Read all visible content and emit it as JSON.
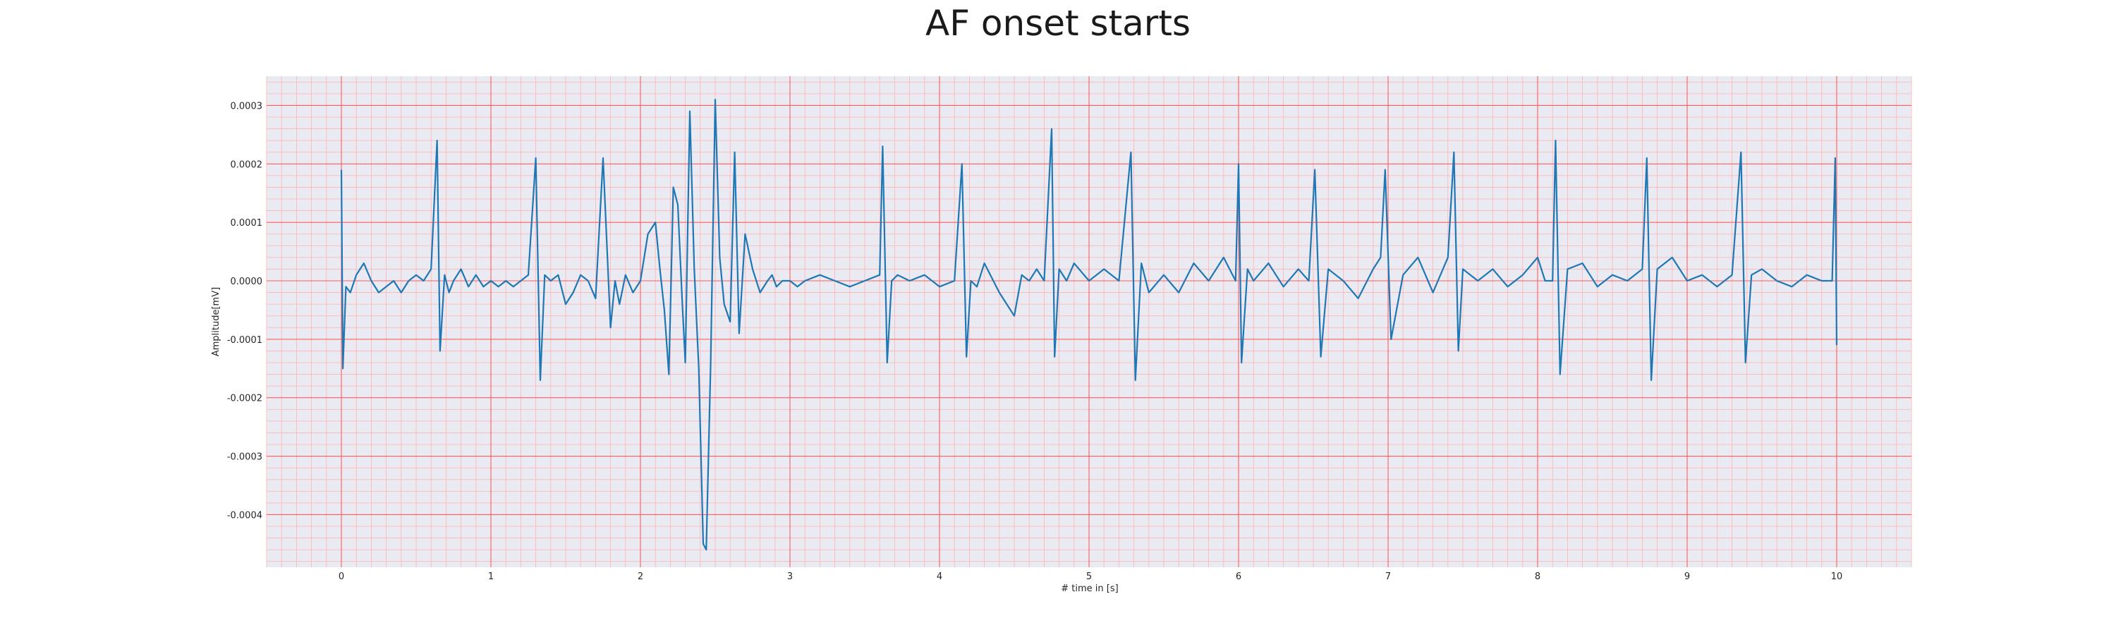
{
  "chart_data": {
    "type": "line",
    "title": "AF onset starts",
    "xlabel": "# time in [s]",
    "ylabel": "Amplitude[mV]",
    "xlim": [
      -0.5,
      10.5
    ],
    "ylim": [
      -0.00049,
      0.00035
    ],
    "x_ticks": [
      0,
      1,
      2,
      3,
      4,
      5,
      6,
      7,
      8,
      9,
      10
    ],
    "x_tick_labels": [
      "0",
      "1",
      "2",
      "3",
      "4",
      "5",
      "6",
      "7",
      "8",
      "9",
      "10"
    ],
    "y_ticks": [
      0.0003,
      0.0002,
      0.0001,
      0.0,
      -0.0001,
      -0.0002,
      -0.0003,
      -0.0004
    ],
    "y_tick_labels": [
      "0.0003",
      "0.0002",
      "0.0001",
      "0.0000",
      "-0.0001",
      "-0.0002",
      "-0.0003",
      "-0.0004"
    ],
    "grid": "major and minor",
    "colors": {
      "line": "#1f77b4",
      "background": "#eaeaf2",
      "major_grid": "#ff5c5c",
      "minor_grid": "#ffb3b3"
    },
    "series": [
      {
        "x": [
          0,
          0.01,
          0.03,
          0.06,
          0.1,
          0.15,
          0.2,
          0.25,
          0.3,
          0.35,
          0.4,
          0.45,
          0.5,
          0.55,
          0.6,
          0.64,
          0.66,
          0.69,
          0.72,
          0.75,
          0.8,
          0.85,
          0.9,
          0.95,
          1.0,
          1.05,
          1.1,
          1.15,
          1.2,
          1.25,
          1.3,
          1.33,
          1.36,
          1.4,
          1.45,
          1.5,
          1.55,
          1.6,
          1.65,
          1.7,
          1.75,
          1.8,
          1.83,
          1.86,
          1.9,
          1.95,
          2.0,
          2.05,
          2.1,
          2.13,
          2.16,
          2.19,
          2.22,
          2.25,
          2.28,
          2.3,
          2.33,
          2.36,
          2.39,
          2.42,
          2.44,
          2.47,
          2.5,
          2.53,
          2.56,
          2.6,
          2.63,
          2.66,
          2.7,
          2.75,
          2.8,
          2.85,
          2.88,
          2.91,
          2.95,
          3.0,
          3.05,
          3.1,
          3.2,
          3.3,
          3.4,
          3.5,
          3.6,
          3.62,
          3.65,
          3.68,
          3.72,
          3.8,
          3.9,
          4.0,
          4.1,
          4.15,
          4.18,
          4.21,
          4.25,
          4.3,
          4.4,
          4.5,
          4.55,
          4.6,
          4.65,
          4.7,
          4.75,
          4.77,
          4.8,
          4.85,
          4.9,
          5.0,
          5.1,
          5.2,
          5.28,
          5.31,
          5.35,
          5.4,
          5.5,
          5.6,
          5.7,
          5.8,
          5.9,
          5.98,
          6.0,
          6.02,
          6.06,
          6.1,
          6.2,
          6.3,
          6.4,
          6.47,
          6.51,
          6.55,
          6.6,
          6.7,
          6.8,
          6.9,
          6.95,
          6.98,
          7.02,
          7.1,
          7.2,
          7.3,
          7.4,
          7.44,
          7.47,
          7.5,
          7.6,
          7.7,
          7.8,
          7.9,
          8.0,
          8.05,
          8.1,
          8.12,
          8.15,
          8.2,
          8.3,
          8.4,
          8.5,
          8.6,
          8.7,
          8.73,
          8.76,
          8.8,
          8.9,
          9.0,
          9.1,
          9.2,
          9.3,
          9.36,
          9.39,
          9.43,
          9.5,
          9.6,
          9.7,
          9.8,
          9.9,
          9.97,
          9.99,
          10.0
        ],
        "values": [
          0.00019,
          -0.00015,
          -1e-05,
          -2e-05,
          1e-05,
          3e-05,
          0.0,
          -2e-05,
          -1e-05,
          0.0,
          -2e-05,
          0.0,
          1e-05,
          0.0,
          2e-05,
          0.00024,
          -0.00012,
          1e-05,
          -2e-05,
          0.0,
          2e-05,
          -1e-05,
          1e-05,
          -1e-05,
          0.0,
          -1e-05,
          0.0,
          -1e-05,
          0.0,
          1e-05,
          0.00021,
          -0.00017,
          1e-05,
          0.0,
          1e-05,
          -4e-05,
          -2e-05,
          1e-05,
          0.0,
          -3e-05,
          0.00021,
          -8e-05,
          0.0,
          -4e-05,
          1e-05,
          -2e-05,
          0.0,
          8e-05,
          0.0001,
          2e-05,
          -5e-05,
          -0.00016,
          0.00016,
          0.00013,
          -4e-05,
          -0.00014,
          0.00029,
          2e-05,
          -0.00015,
          -0.00045,
          -0.00046,
          -0.00014,
          0.00031,
          4e-05,
          -4e-05,
          -7e-05,
          0.00022,
          -9e-05,
          8e-05,
          2e-05,
          -2e-05,
          0.0,
          1e-05,
          -1e-05,
          0.0,
          0.0,
          -1e-05,
          0.0,
          1e-05,
          0.0,
          -1e-05,
          0.0,
          1e-05,
          0.00023,
          -0.00014,
          0.0,
          1e-05,
          0.0,
          1e-05,
          -1e-05,
          0.0,
          0.0002,
          -0.00013,
          0.0,
          -1e-05,
          3e-05,
          -2e-05,
          -6e-05,
          1e-05,
          0.0,
          2e-05,
          0.0,
          0.00026,
          -0.00013,
          2e-05,
          0.0,
          3e-05,
          0.0,
          2e-05,
          0.0,
          0.00022,
          -0.00017,
          3e-05,
          -2e-05,
          1e-05,
          -2e-05,
          3e-05,
          0.0,
          4e-05,
          0.0,
          0.0002,
          -0.00014,
          2e-05,
          0.0,
          3e-05,
          -1e-05,
          2e-05,
          0.0,
          0.00019,
          -0.00013,
          2e-05,
          0.0,
          -3e-05,
          2e-05,
          4e-05,
          0.00019,
          -0.0001,
          1e-05,
          4e-05,
          -2e-05,
          4e-05,
          0.00022,
          -0.00012,
          2e-05,
          0.0,
          2e-05,
          -1e-05,
          1e-05,
          4e-05,
          0.0,
          0.0,
          0.00024,
          -0.00016,
          2e-05,
          3e-05,
          -1e-05,
          1e-05,
          0.0,
          2e-05,
          0.00021,
          -0.00017,
          2e-05,
          4e-05,
          0.0,
          1e-05,
          -1e-05,
          1e-05,
          0.00022,
          -0.00014,
          1e-05,
          2e-05,
          0.0,
          -1e-05,
          1e-05,
          0.0,
          0.0,
          0.00021,
          -0.00011
        ]
      }
    ]
  }
}
